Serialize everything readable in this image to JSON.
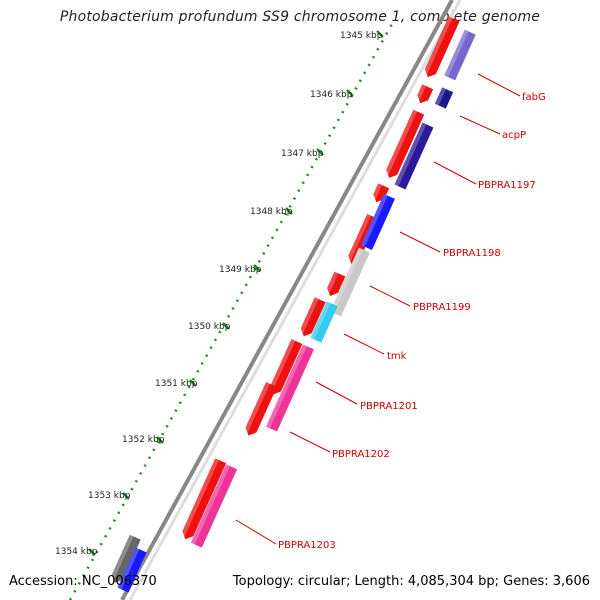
{
  "title": "Photobacterium profundum SS9 chromosome 1, complete genome",
  "footer": {
    "accession": "Accession: NC_006370",
    "stats": "Topology: circular; Length: 4,085,304 bp; Genes: 3,606"
  },
  "colors": {
    "outer_ring": "#888888",
    "cds_forward": "#ee1111",
    "scale_dots": "#228822",
    "label": "#cc0000",
    "tick": "#228822"
  },
  "ticks": [
    "1345 kbp",
    "1346 kbp",
    "1347 kbp",
    "1348 kbp",
    "1349 kbp",
    "1350 kbp",
    "1351 kbp",
    "1352 kbp",
    "1353 kbp",
    "1354 kbp"
  ],
  "genes": [
    {
      "label": "fabG",
      "color": "#7766cc"
    },
    {
      "label": "acpP",
      "color": "#1a1a8a"
    },
    {
      "label": "PBPRA1197",
      "color": "#2a1a99"
    },
    {
      "label": "PBPRA1198",
      "color": "#1a1aff"
    },
    {
      "label": "PBPRA1199",
      "color": "#c8c8c8"
    },
    {
      "label": "tmk",
      "color": "#33ccee"
    },
    {
      "label": "PBPRA1201",
      "color": "#ee3399"
    },
    {
      "label": "PBPRA1202",
      "color": "#ee3399"
    },
    {
      "label": "PBPRA1203",
      "color": "#22cccc"
    }
  ]
}
